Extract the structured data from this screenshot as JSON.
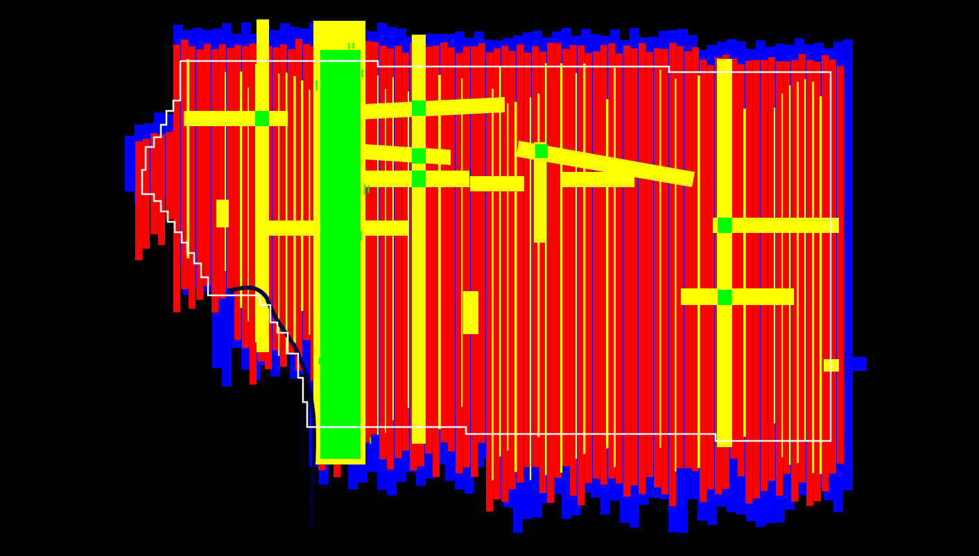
{
  "map": {
    "background": "#000000",
    "boundary_color": "#ffffff",
    "legend_colors": {
      "blue": "#0000ff",
      "red": "#ff0000",
      "yellow": "#ffff00",
      "green": "#00ff00"
    }
  }
}
